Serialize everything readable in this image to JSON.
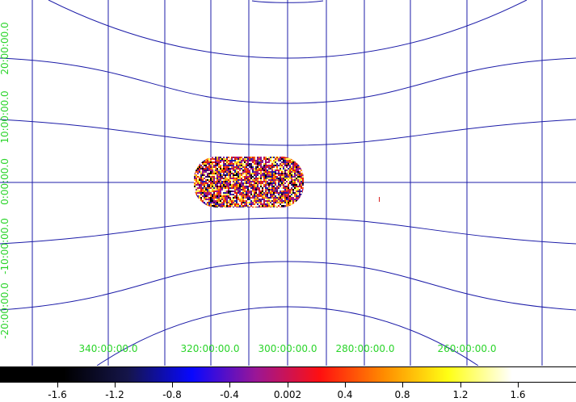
{
  "colors": {
    "grid": "#1c1ca8",
    "label": "#2ad42a",
    "background": "#ffffff"
  },
  "axes": {
    "x_labels": [
      "340:00:00.0",
      "320:00:00.0",
      "300:00:00.0",
      "280:00:00.0",
      "260:00:00.0"
    ],
    "y_labels": [
      "20:00:00.0",
      "10:00:00.0",
      "0:00:00.0",
      "-10:00:00.0",
      "-20:00:00.0"
    ]
  },
  "colorbar": {
    "colormap": "heat (black-blue-purple-red-orange-yellow-white)",
    "tick_labels": [
      "-1.6",
      "-1.2",
      "-0.8",
      "-0.4",
      "0.002",
      "0.4",
      "0.8",
      "1.2",
      "1.6"
    ],
    "stops": [
      "#000000",
      "#000000",
      "#15154a",
      "#0808ff",
      "#9a1696",
      "#ff1010",
      "#ff8c00",
      "#ffff14",
      "#ffffff",
      "#ffffff"
    ]
  }
}
